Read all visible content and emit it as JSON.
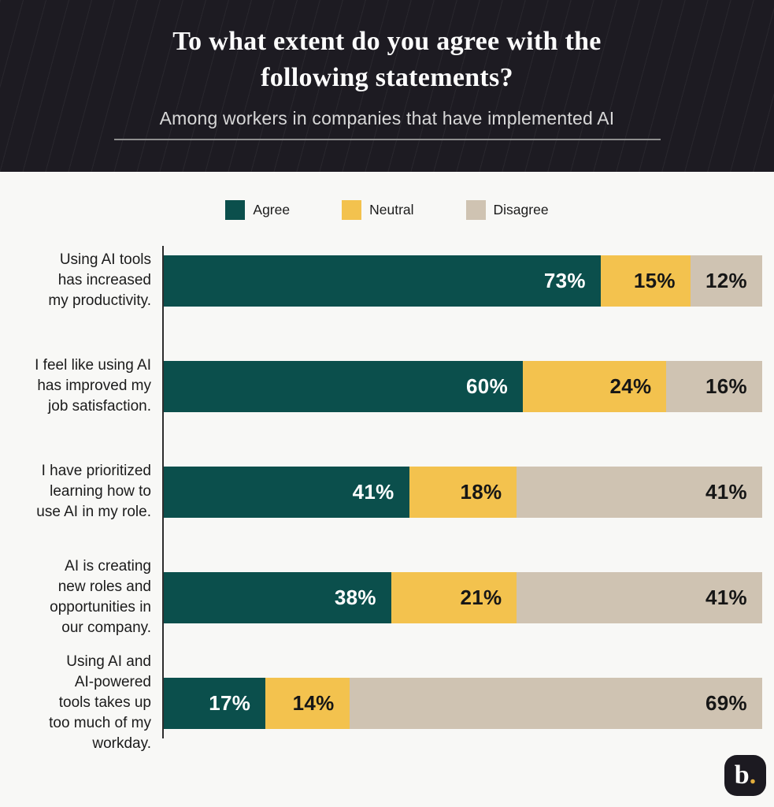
{
  "header": {
    "title_line1": "To what extent do you agree with the",
    "title_line2": "following statements?",
    "subtitle": "Among workers in companies that have implemented AI"
  },
  "legend": [
    {
      "label": "Agree",
      "color": "#0B4F4C"
    },
    {
      "label": "Neutral",
      "color": "#F3C24E"
    },
    {
      "label": "Disagree",
      "color": "#CFC3B2"
    }
  ],
  "chart_data": {
    "type": "bar",
    "orientation": "horizontal",
    "stacked": true,
    "unit": "%",
    "title": "To what extent do you agree with the following statements?",
    "subtitle": "Among workers in companies that have implemented AI",
    "xlim": [
      0,
      100
    ],
    "legend_position": "top",
    "grid": false,
    "categories": [
      "Using AI tools has increased my productivity.",
      "I feel like using AI has improved my job satisfaction.",
      "I have prioritized learning how to use AI in my role.",
      "AI is creating new roles and opportunities in our company.",
      "Using AI and AI-powered tools takes up too much of my workday."
    ],
    "series": [
      {
        "name": "Agree",
        "color": "#0B4F4C",
        "values": [
          73,
          60,
          41,
          38,
          17
        ]
      },
      {
        "name": "Neutral",
        "color": "#F3C24E",
        "values": [
          15,
          24,
          18,
          21,
          14
        ]
      },
      {
        "name": "Disagree",
        "color": "#CFC3B2",
        "values": [
          12,
          16,
          41,
          41,
          69
        ]
      }
    ]
  },
  "rows": [
    {
      "label": "Using AI tools has increased my productivity.",
      "label_lines": [
        "Using AI tools",
        "has increased",
        "my productivity."
      ],
      "segments": [
        {
          "name": "Agree",
          "value": 73,
          "text": "73%"
        },
        {
          "name": "Neutral",
          "value": 15,
          "text": "15%"
        },
        {
          "name": "Disagree",
          "value": 12,
          "text": "12%"
        }
      ]
    },
    {
      "label": "I feel like using AI has improved my job satisfaction.",
      "label_lines": [
        "I feel like using AI",
        "has improved my",
        "job satisfaction."
      ],
      "segments": [
        {
          "name": "Agree",
          "value": 60,
          "text": "60%"
        },
        {
          "name": "Neutral",
          "value": 24,
          "text": "24%"
        },
        {
          "name": "Disagree",
          "value": 16,
          "text": "16%"
        }
      ]
    },
    {
      "label": "I have prioritized learning how to use AI in my role.",
      "label_lines": [
        "I have prioritized",
        "learning how to",
        "use AI in my role."
      ],
      "segments": [
        {
          "name": "Agree",
          "value": 41,
          "text": "41%"
        },
        {
          "name": "Neutral",
          "value": 18,
          "text": "18%"
        },
        {
          "name": "Disagree",
          "value": 41,
          "text": "41%"
        }
      ]
    },
    {
      "label": "AI is creating new roles and opportunities in our company.",
      "label_lines": [
        "AI is creating",
        "new roles and",
        "opportunities in",
        "our company."
      ],
      "segments": [
        {
          "name": "Agree",
          "value": 38,
          "text": "38%"
        },
        {
          "name": "Neutral",
          "value": 21,
          "text": "21%"
        },
        {
          "name": "Disagree",
          "value": 41,
          "text": "41%"
        }
      ]
    },
    {
      "label": "Using AI and AI-powered tools takes up too much of my workday.",
      "label_lines": [
        "Using AI and",
        "AI-powered",
        "tools takes up",
        "too much of my",
        "workday."
      ],
      "segments": [
        {
          "name": "Agree",
          "value": 17,
          "text": "17%"
        },
        {
          "name": "Neutral",
          "value": 14,
          "text": "14%"
        },
        {
          "name": "Disagree",
          "value": 69,
          "text": "69%"
        }
      ]
    }
  ],
  "logo": {
    "text": "b",
    "dot": "."
  },
  "colors": {
    "header_background": "#1D1B22",
    "chart_background": "#F8F8F6",
    "agree": "#0B4F4C",
    "neutral": "#F3C24E",
    "disagree": "#CFC3B2",
    "axis_line": "#2D2D2D",
    "title_text": "#FCFCFC",
    "subtitle_text": "#D8D8D8",
    "label_text": "#1B1B1B",
    "logo_dot": "#E3AE3D"
  }
}
